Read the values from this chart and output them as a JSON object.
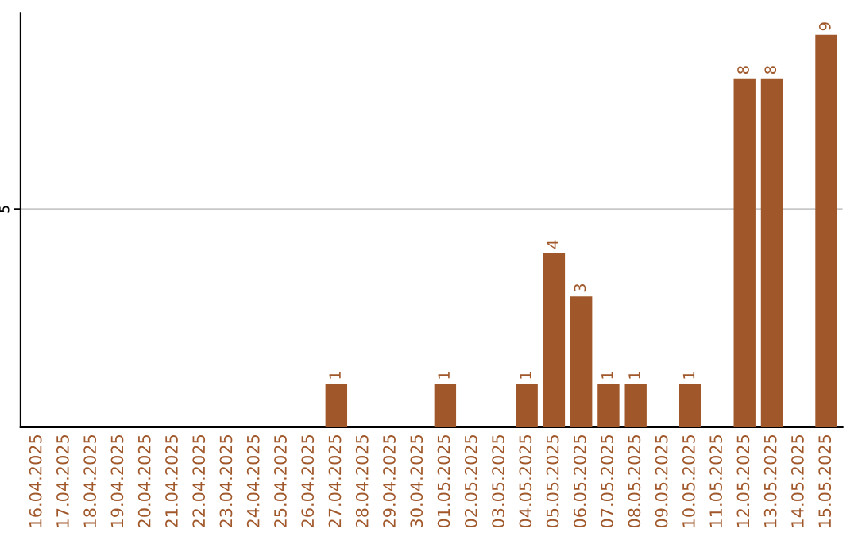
{
  "chart_data": {
    "type": "bar",
    "categories": [
      "16.04.2025",
      "17.04.2025",
      "18.04.2025",
      "19.04.2025",
      "20.04.2025",
      "21.04.2025",
      "22.04.2025",
      "23.04.2025",
      "24.04.2025",
      "25.04.2025",
      "26.04.2025",
      "27.04.2025",
      "28.04.2025",
      "29.04.2025",
      "30.04.2025",
      "01.05.2025",
      "02.05.2025",
      "03.05.2025",
      "04.05.2025",
      "05.05.2025",
      "06.05.2025",
      "07.05.2025",
      "08.05.2025",
      "09.05.2025",
      "10.05.2025",
      "11.05.2025",
      "12.05.2025",
      "13.05.2025",
      "14.05.2025",
      "15.05.2025"
    ],
    "values": [
      0,
      0,
      0,
      0,
      0,
      0,
      0,
      0,
      0,
      0,
      0,
      1,
      0,
      0,
      0,
      1,
      0,
      0,
      1,
      4,
      3,
      1,
      1,
      0,
      1,
      0,
      8,
      8,
      0,
      9
    ],
    "value_labels": [
      null,
      null,
      null,
      null,
      null,
      null,
      null,
      null,
      null,
      null,
      null,
      "1",
      null,
      null,
      null,
      "1",
      null,
      null,
      "1",
      "4",
      "3",
      "1",
      "1",
      null,
      "1",
      null,
      "8",
      "8",
      null,
      "9"
    ],
    "color": "#a0572a",
    "ylim": [
      0,
      9.5
    ],
    "yticks": [
      5
    ],
    "grid": "y",
    "legend": false
  }
}
